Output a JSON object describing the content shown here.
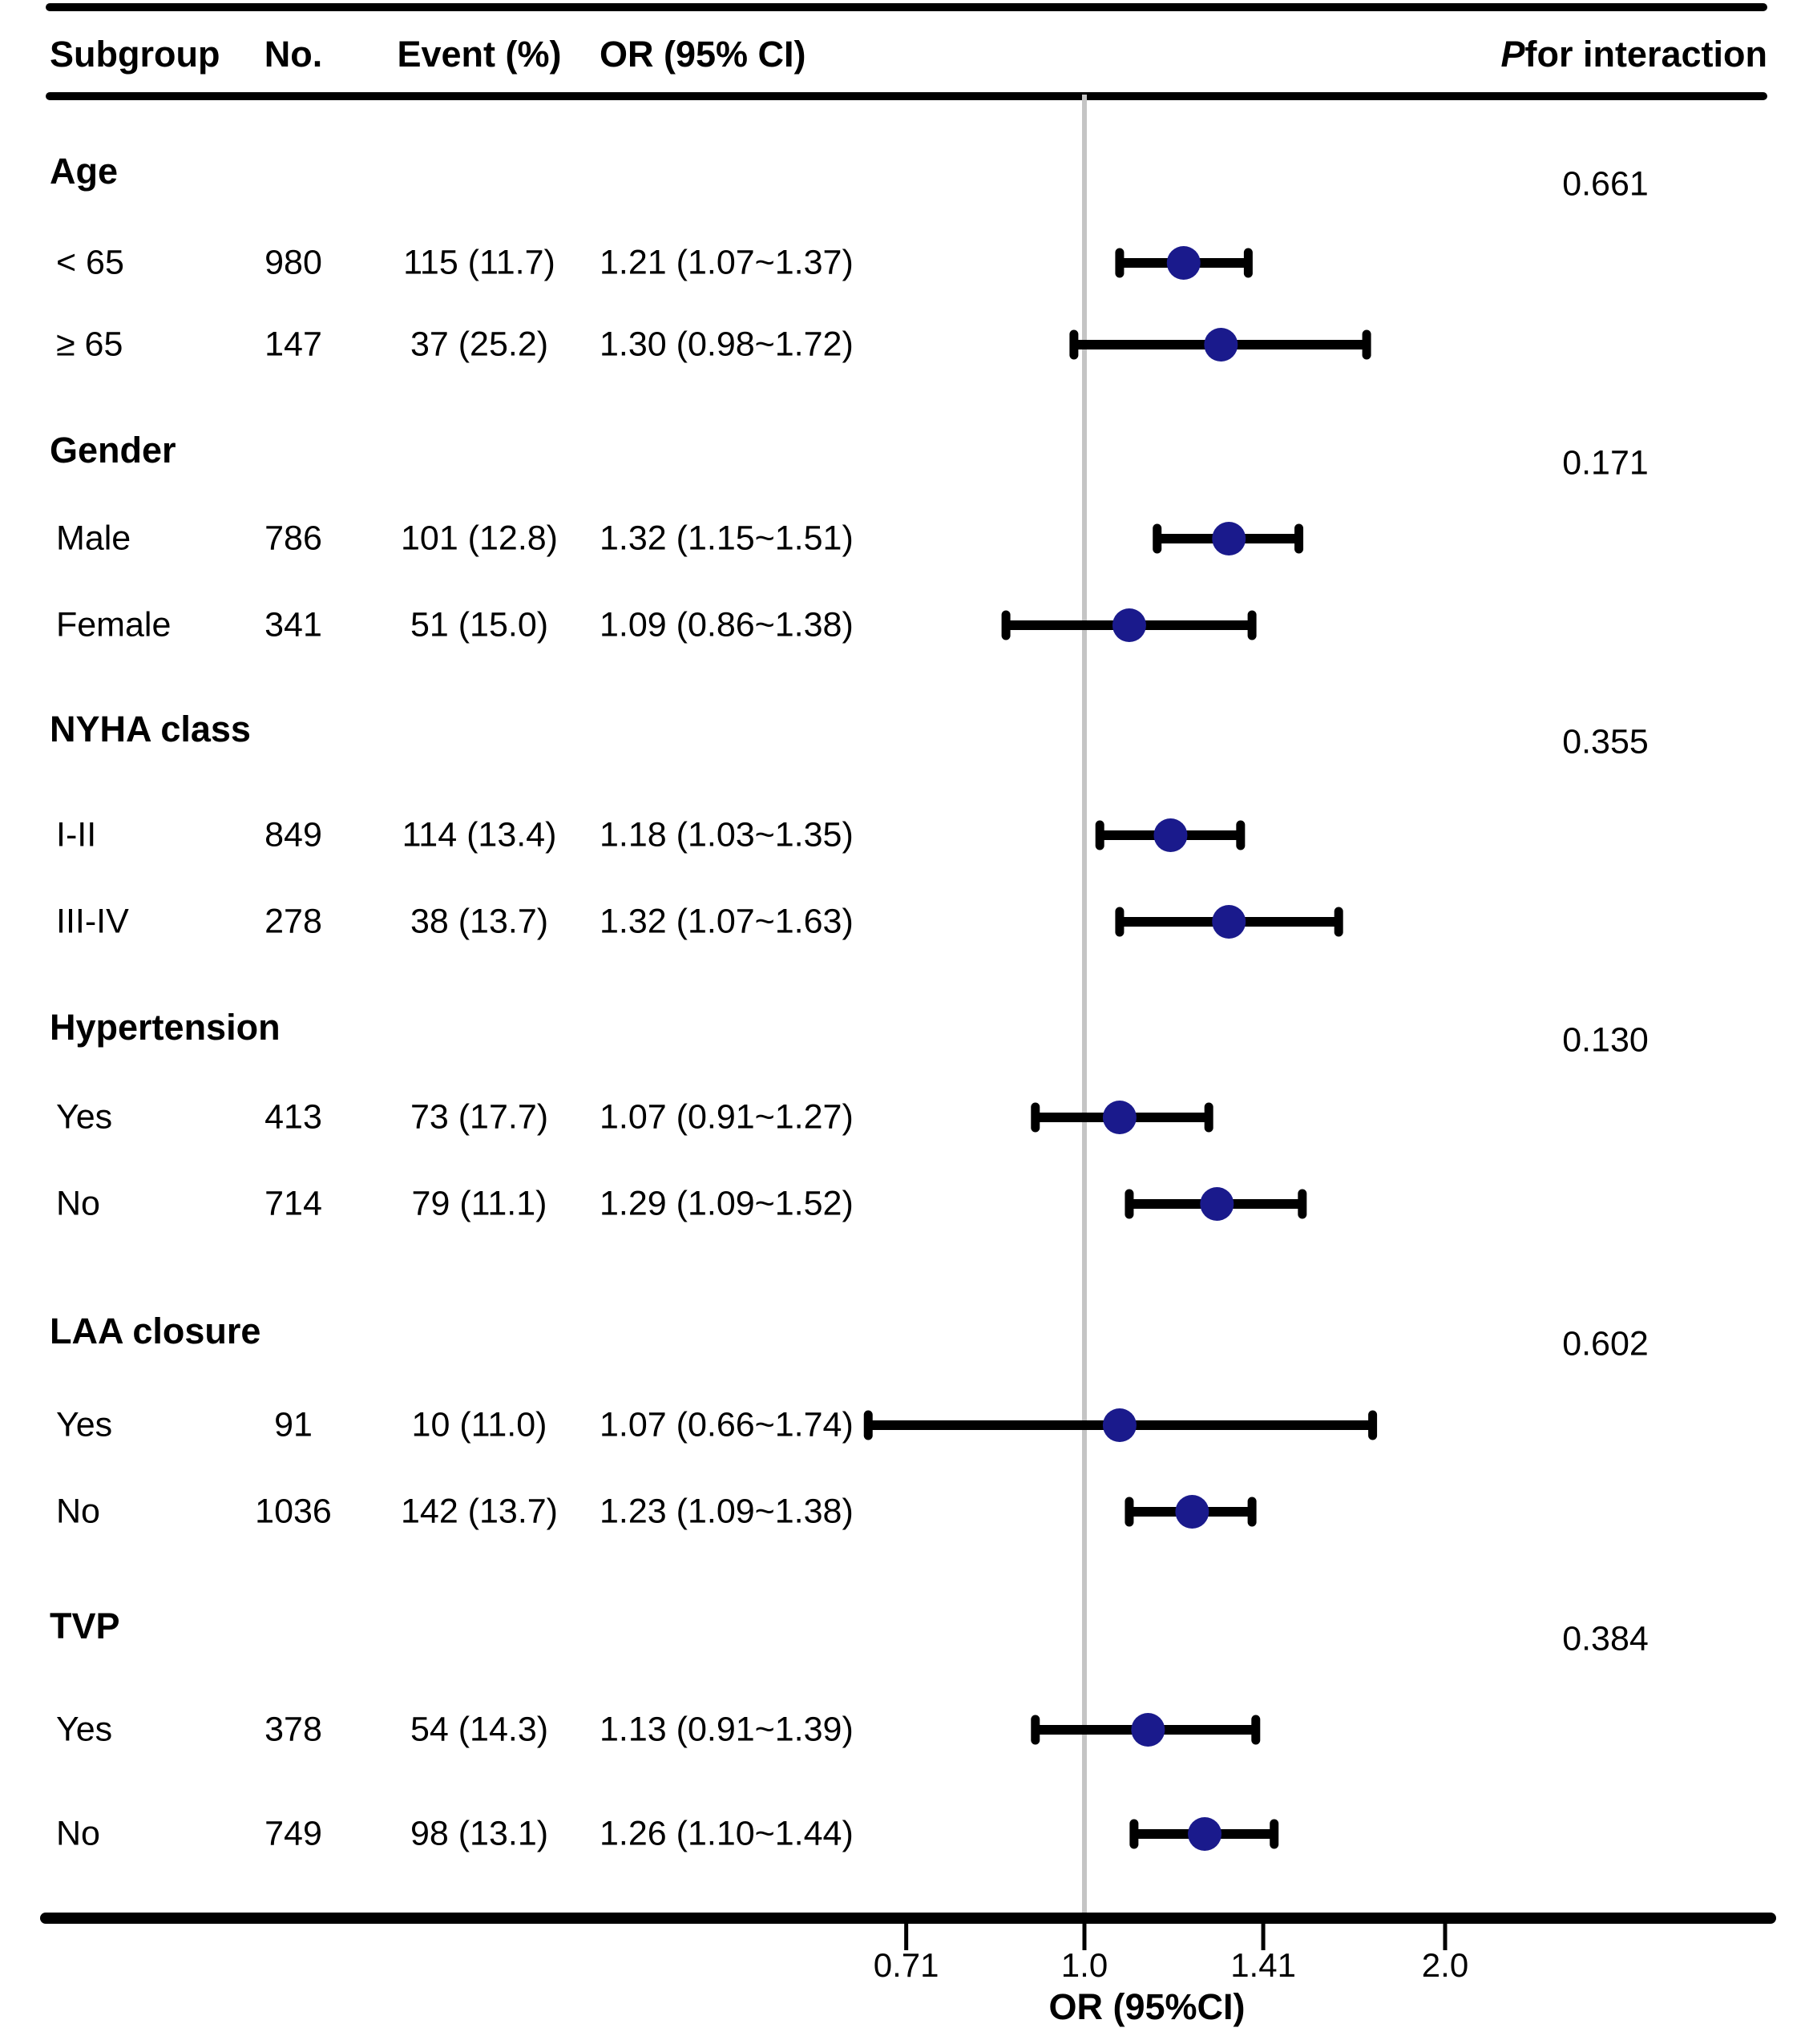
{
  "header": {
    "subgroup": "Subgroup",
    "no": "No.",
    "event": "Event (%)",
    "or": "OR (95% CI)",
    "p_italic": "P",
    "p_rest": " for interaction"
  },
  "axis": {
    "title": "OR (95%CI)",
    "ticks": [
      {
        "label": "0.71",
        "value": 0.71
      },
      {
        "label": "1.0",
        "value": 1.0
      },
      {
        "label": "1.41",
        "value": 1.41
      },
      {
        "label": "2.0",
        "value": 2.0
      }
    ],
    "reference_value": 1.0
  },
  "colors": {
    "marker": "#1a1a8c",
    "ci_line": "#000000",
    "ref_line": "#c4c4c4",
    "text": "#000000"
  },
  "chart_data": {
    "type": "forest",
    "x_scale": "log2",
    "x_ticks": [
      0.71,
      1.0,
      1.41,
      2.0
    ],
    "xlabel": "OR (95%CI)",
    "reference_line": 1.0,
    "sections": [
      {
        "label": "Age",
        "p_interaction": "0.661",
        "rows": [
          {
            "label": "< 65",
            "n": "980",
            "event": "115 (11.7)",
            "or_text": "1.21 (1.07~1.37)",
            "or": 1.21,
            "lo": 1.07,
            "hi": 1.37
          },
          {
            "label": "≥ 65",
            "n": "147",
            "event": "37 (25.2)",
            "or_text": "1.30 (0.98~1.72)",
            "or": 1.3,
            "lo": 0.98,
            "hi": 1.72
          }
        ]
      },
      {
        "label": "Gender",
        "p_interaction": "0.171",
        "rows": [
          {
            "label": "Male",
            "n": "786",
            "event": "101 (12.8)",
            "or_text": "1.32 (1.15~1.51)",
            "or": 1.32,
            "lo": 1.15,
            "hi": 1.51
          },
          {
            "label": "Female",
            "n": "341",
            "event": "51 (15.0)",
            "or_text": "1.09 (0.86~1.38)",
            "or": 1.09,
            "lo": 0.86,
            "hi": 1.38
          }
        ]
      },
      {
        "label": "NYHA class",
        "p_interaction": "0.355",
        "rows": [
          {
            "label": "I-II",
            "n": "849",
            "event": "114 (13.4)",
            "or_text": "1.18 (1.03~1.35)",
            "or": 1.18,
            "lo": 1.03,
            "hi": 1.35
          },
          {
            "label": "III-IV",
            "n": "278",
            "event": "38 (13.7)",
            "or_text": "1.32 (1.07~1.63)",
            "or": 1.32,
            "lo": 1.07,
            "hi": 1.63
          }
        ]
      },
      {
        "label": "Hypertension",
        "p_interaction": "0.130",
        "rows": [
          {
            "label": "Yes",
            "n": "413",
            "event": "73 (17.7)",
            "or_text": "1.07 (0.91~1.27)",
            "or": 1.07,
            "lo": 0.91,
            "hi": 1.27
          },
          {
            "label": "No",
            "n": "714",
            "event": "79 (11.1)",
            "or_text": "1.29 (1.09~1.52)",
            "or": 1.29,
            "lo": 1.09,
            "hi": 1.52
          }
        ]
      },
      {
        "label": "LAA closure",
        "p_interaction": "0.602",
        "rows": [
          {
            "label": "Yes",
            "n": "91",
            "event": "10 (11.0)",
            "or_text": "1.07 (0.66~1.74)",
            "or": 1.07,
            "lo": 0.66,
            "hi": 1.74
          },
          {
            "label": "No",
            "n": "1036",
            "event": "142 (13.7)",
            "or_text": "1.23 (1.09~1.38)",
            "or": 1.23,
            "lo": 1.09,
            "hi": 1.38
          }
        ]
      },
      {
        "label": "TVP",
        "p_interaction": "0.384",
        "rows": [
          {
            "label": "Yes",
            "n": "378",
            "event": "54 (14.3)",
            "or_text": "1.13 (0.91~1.39)",
            "or": 1.13,
            "lo": 0.91,
            "hi": 1.39
          },
          {
            "label": "No",
            "n": "749",
            "event": "98 (13.1)",
            "or_text": "1.26 (1.10~1.44)",
            "or": 1.26,
            "lo": 1.1,
            "hi": 1.44
          }
        ]
      }
    ]
  }
}
